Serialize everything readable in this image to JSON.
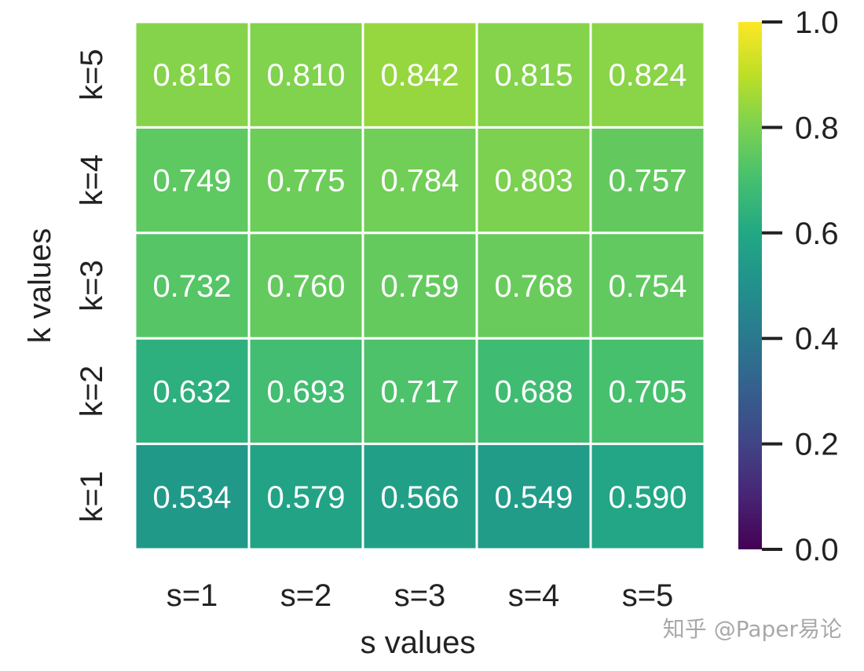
{
  "chart_data": {
    "type": "heatmap",
    "xlabel": "s values",
    "ylabel": "k values",
    "x_categories": [
      "s=1",
      "s=2",
      "s=3",
      "s=4",
      "s=5"
    ],
    "y_categories": [
      "k=5",
      "k=4",
      "k=3",
      "k=2",
      "k=1"
    ],
    "values": [
      [
        0.816,
        0.81,
        0.842,
        0.815,
        0.824
      ],
      [
        0.749,
        0.775,
        0.784,
        0.803,
        0.757
      ],
      [
        0.732,
        0.76,
        0.759,
        0.768,
        0.754
      ],
      [
        0.632,
        0.693,
        0.717,
        0.688,
        0.705
      ],
      [
        0.534,
        0.579,
        0.566,
        0.549,
        0.59
      ]
    ],
    "value_format": "3 decimals",
    "colormap": "viridis",
    "colorbar": {
      "range": [
        0.0,
        1.0
      ],
      "ticks": [
        "0.0",
        "0.2",
        "0.4",
        "0.6",
        "0.8",
        "1.0"
      ],
      "position": "right"
    },
    "annotations_color": "#ffffff",
    "cell_separator_color": "#ffffff"
  },
  "watermark": "知乎 @Paper易论"
}
